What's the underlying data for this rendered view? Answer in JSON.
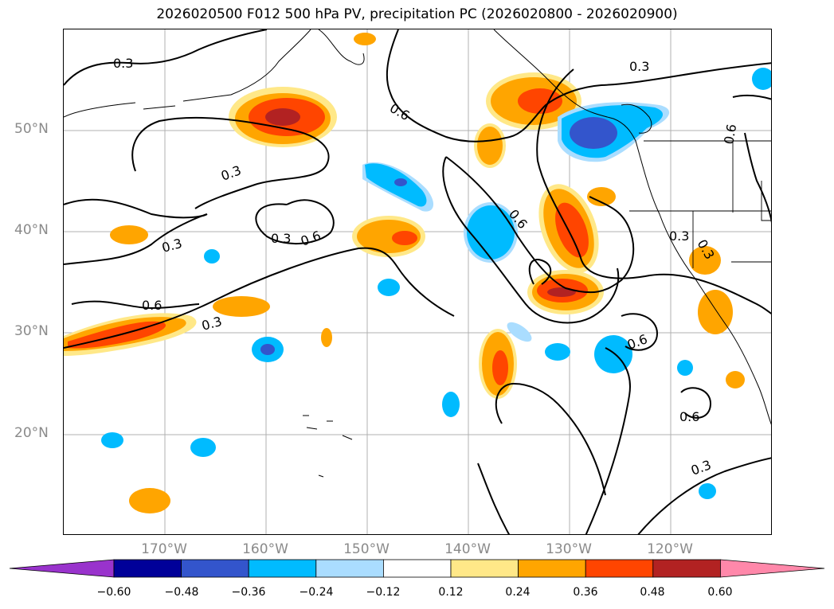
{
  "title": "2026020500 F012 500 hPa PV, precipitation PC (2026020800 - 2026020900)",
  "lat_labels": [
    "50°N",
    "40°N",
    "30°N",
    "20°N"
  ],
  "lon_labels": [
    "170°W",
    "160°W",
    "150°W",
    "140°W",
    "130°W",
    "120°W"
  ],
  "contour_labels": [
    "0.3",
    "0.6",
    "0.3",
    "0.6",
    "0.3",
    "0.6",
    "0.3",
    "0.6",
    "0.6",
    "0.3",
    "0.3",
    "0.6",
    "0.3",
    "0.3",
    "0.6",
    "0.3"
  ],
  "colorbar": {
    "tick_labels": [
      "−0.60",
      "−0.48",
      "−0.36",
      "−0.24",
      "−0.12",
      "0.12",
      "0.24",
      "0.36",
      "0.48",
      "0.60"
    ],
    "colors": [
      "#9933cc",
      "#000099",
      "#3355cc",
      "#00bbff",
      "#aaddff",
      "#ffffff",
      "#ffe888",
      "#ffa500",
      "#ff4500",
      "#b22222",
      "#ff88aa"
    ]
  },
  "palette": {
    "neg_light": "#aaddff",
    "neg_mid": "#00bbff",
    "neg_strong": "#3355cc",
    "pos_light": "#ffe888",
    "pos_mid": "#ffa500",
    "pos_strong": "#ff4500",
    "pos_max": "#b22222"
  }
}
